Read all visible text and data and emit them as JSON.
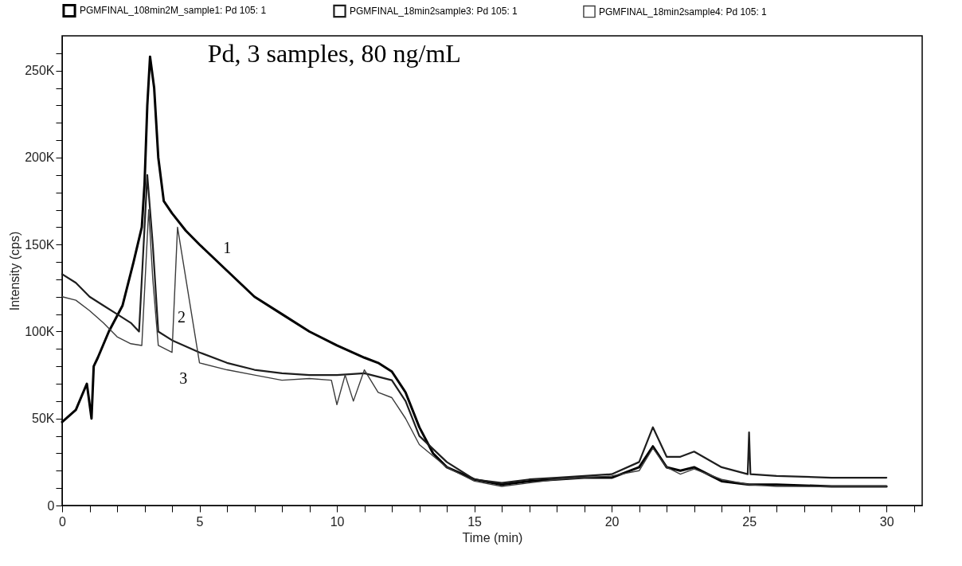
{
  "chart_data": {
    "type": "line",
    "title": "Pd, 3 samples, 80 ng/mL",
    "xlabel": "Time (min)",
    "ylabel": "Intensity (cps)",
    "xlim": [
      0,
      31.3
    ],
    "ylim": [
      0,
      270000
    ],
    "xticks": [
      0,
      {
        "value": 1,
        "label": null
      },
      {
        "value": 2,
        "label": null
      },
      {
        "value": 3,
        "label": null
      },
      {
        "value": 4,
        "label": null
      },
      5,
      {
        "value": 6,
        "label": null
      },
      {
        "value": 7,
        "label": null
      },
      {
        "value": 8,
        "label": null
      },
      {
        "value": 9,
        "label": null
      },
      10,
      {
        "value": 11,
        "label": null
      },
      {
        "value": 12,
        "label": null
      },
      {
        "value": 13,
        "label": null
      },
      {
        "value": 14,
        "label": null
      },
      15,
      {
        "value": 16,
        "label": null
      },
      {
        "value": 17,
        "label": null
      },
      {
        "value": 18,
        "label": null
      },
      {
        "value": 19,
        "label": null
      },
      20,
      {
        "value": 21,
        "label": null
      },
      {
        "value": 22,
        "label": null
      },
      {
        "value": 23,
        "label": null
      },
      {
        "value": 24,
        "label": null
      },
      25,
      {
        "value": 26,
        "label": null
      },
      {
        "value": 27,
        "label": null
      },
      {
        "value": 28,
        "label": null
      },
      {
        "value": 29,
        "label": null
      },
      30,
      {
        "value": 31,
        "label": null
      }
    ],
    "yticks": [
      0,
      {
        "value": 10000,
        "label": null
      },
      {
        "value": 20000,
        "label": null
      },
      {
        "value": 30000,
        "label": null
      },
      {
        "value": 40000,
        "label": null
      },
      {
        "value": 50000,
        "label": "50K"
      },
      {
        "value": 60000,
        "label": null
      },
      {
        "value": 70000,
        "label": null
      },
      {
        "value": 80000,
        "label": null
      },
      {
        "value": 90000,
        "label": null
      },
      {
        "value": 100000,
        "label": "100K"
      },
      {
        "value": 110000,
        "label": null
      },
      {
        "value": 120000,
        "label": null
      },
      {
        "value": 130000,
        "label": null
      },
      {
        "value": 140000,
        "label": null
      },
      {
        "value": 150000,
        "label": "150K"
      },
      {
        "value": 160000,
        "label": null
      },
      {
        "value": 170000,
        "label": null
      },
      {
        "value": 180000,
        "label": null
      },
      {
        "value": 190000,
        "label": null
      },
      {
        "value": 200000,
        "label": "200K"
      },
      {
        "value": 210000,
        "label": null
      },
      {
        "value": 220000,
        "label": null
      },
      {
        "value": 230000,
        "label": null
      },
      {
        "value": 240000,
        "label": null
      },
      {
        "value": 250000,
        "label": "250K"
      },
      {
        "value": 260000,
        "label": null
      }
    ],
    "grid": false,
    "legend": "top",
    "marker": "none",
    "annotations": [
      "1",
      "2",
      "3"
    ],
    "series": [
      {
        "name": "PGMFINAL_108min2M_sample1: Pd 105: 1",
        "color": "#000000",
        "x": [
          0,
          0.5,
          0.9,
          1.07,
          1.15,
          1.3,
          1.7,
          2.2,
          2.6,
          2.9,
          3.0,
          3.1,
          3.2,
          3.35,
          3.5,
          3.7,
          4.0,
          4.5,
          5,
          6,
          7,
          8,
          9,
          10,
          11,
          11.5,
          12,
          12.5,
          13,
          13.5,
          14,
          15,
          16,
          17,
          18,
          19,
          20,
          21,
          21.5,
          22,
          22.5,
          23,
          23.5,
          24,
          25,
          26,
          28,
          30
        ],
        "values": [
          48000,
          55000,
          70000,
          50000,
          80000,
          85000,
          100000,
          115000,
          140000,
          160000,
          185000,
          230000,
          258000,
          240000,
          200000,
          175000,
          168000,
          158000,
          150000,
          135000,
          120000,
          110000,
          100000,
          92000,
          85000,
          82000,
          77000,
          65000,
          45000,
          30000,
          22000,
          15000,
          12000,
          14000,
          15000,
          16000,
          16000,
          22000,
          34000,
          22000,
          20000,
          22000,
          18000,
          14000,
          12000,
          12000,
          11000,
          11000
        ]
      },
      {
        "name": "PGMFINAL_18min2sample3: Pd 105: 1",
        "color": "#1e1e1e",
        "x": [
          0,
          0.5,
          1,
          1.5,
          2,
          2.5,
          2.8,
          3.1,
          3.3,
          3.5,
          4,
          5,
          6,
          7,
          8,
          9,
          10,
          11,
          12,
          12.5,
          13,
          14,
          15,
          16,
          17,
          18,
          19,
          20,
          21,
          21.5,
          22,
          22.5,
          23,
          24,
          24.95,
          25,
          25.05,
          26,
          28,
          30
        ],
        "values": [
          133000,
          128000,
          120000,
          115000,
          110000,
          105000,
          100000,
          190000,
          150000,
          100000,
          95000,
          88000,
          82000,
          78000,
          76000,
          75000,
          75000,
          76000,
          72000,
          60000,
          40000,
          25000,
          15000,
          13000,
          15000,
          16000,
          17000,
          18000,
          25000,
          45000,
          28000,
          28000,
          31000,
          22000,
          18000,
          42000,
          18000,
          17000,
          16000,
          16000
        ]
      },
      {
        "name": "PGMFINAL_18min2sample4: Pd 105: 1",
        "color": "#3c3c3c",
        "x": [
          0,
          0.5,
          1,
          1.5,
          2,
          2.5,
          2.9,
          3.15,
          3.3,
          3.5,
          4,
          4.2,
          5,
          6,
          7,
          8,
          9,
          9.8,
          10,
          10.3,
          10.6,
          11,
          11.5,
          12,
          12.5,
          13,
          14,
          15,
          16,
          17,
          18,
          19,
          20,
          21,
          21.5,
          22,
          22.5,
          23,
          24,
          25,
          26,
          28,
          30
        ],
        "values": [
          120000,
          118000,
          112000,
          105000,
          97000,
          93000,
          92000,
          170000,
          130000,
          92000,
          88000,
          160000,
          82000,
          78000,
          75000,
          72000,
          73000,
          72000,
          58000,
          75000,
          60000,
          78000,
          65000,
          62000,
          50000,
          35000,
          22000,
          14000,
          11000,
          13000,
          15000,
          16000,
          17000,
          20000,
          33000,
          22000,
          18000,
          21000,
          15000,
          12000,
          11000,
          11000,
          11000
        ]
      }
    ]
  }
}
